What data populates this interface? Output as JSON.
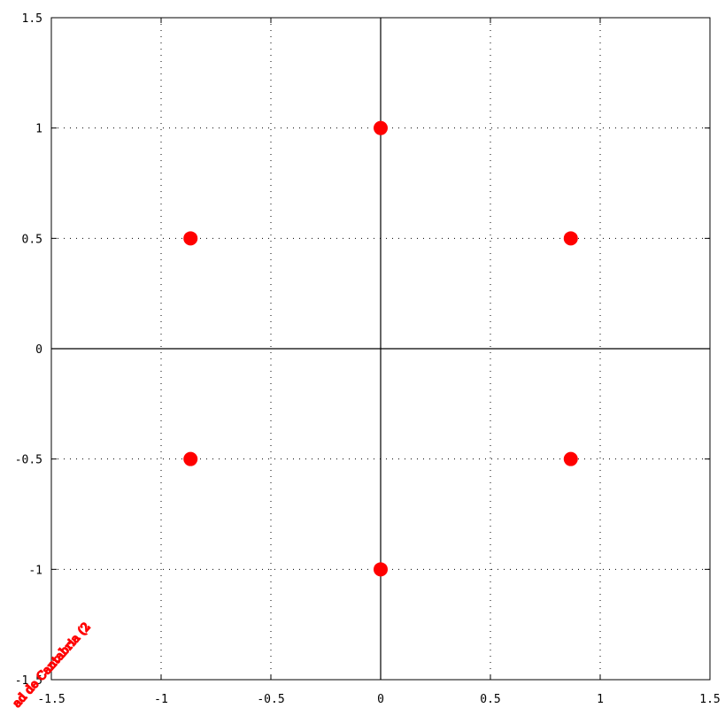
{
  "chart_data": {
    "type": "scatter",
    "title": "",
    "xlabel": "",
    "ylabel": "",
    "xlim": [
      -1.5,
      1.5
    ],
    "ylim": [
      -1.5,
      1.5
    ],
    "grid": true,
    "axes_through_origin": true,
    "x_ticks": [
      -1.5,
      -1,
      -0.5,
      0,
      0.5,
      1,
      1.5
    ],
    "y_ticks": [
      -1.5,
      -1,
      -0.5,
      0,
      0.5,
      1,
      1.5
    ],
    "x_tick_labels": [
      "-1.5",
      "-1",
      "-0.5",
      "0",
      "0.5",
      "1",
      "1.5"
    ],
    "y_tick_labels": [
      "-1.5",
      "-1",
      "-0.5",
      "0",
      "0.5",
      "1",
      "1.5"
    ],
    "series": [
      {
        "color": "#ff0000",
        "points": [
          {
            "x": 0,
            "y": 1
          },
          {
            "x": 0.866,
            "y": 0.5
          },
          {
            "x": 0.866,
            "y": -0.5
          },
          {
            "x": 0,
            "y": -1
          },
          {
            "x": -0.866,
            "y": -0.5
          },
          {
            "x": -0.866,
            "y": 0.5
          }
        ]
      }
    ]
  },
  "watermark": {
    "text": "ad de Cantabria (2",
    "color": "#ff0000"
  }
}
